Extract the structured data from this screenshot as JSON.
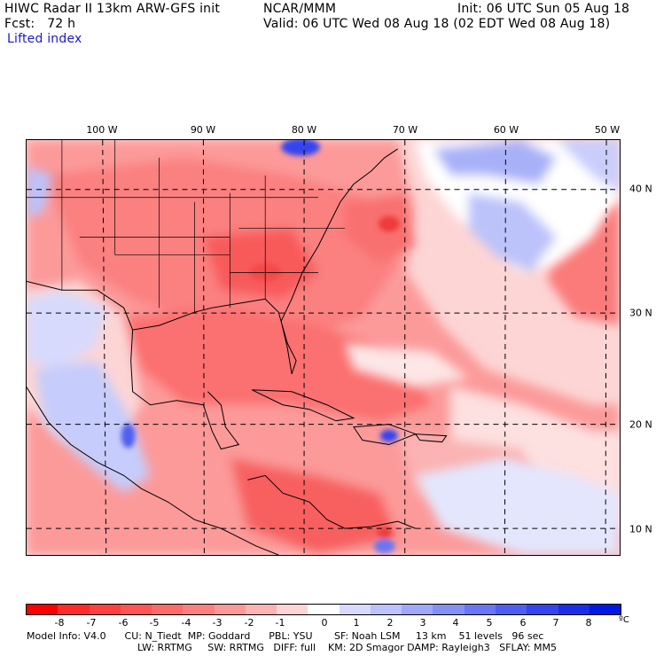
{
  "header": {
    "line1_left": "HIWC Radar II 13km ARW-GFS init",
    "line1_mid": "NCAR/MMM",
    "line1_right": "Init: 06 UTC Sun 05 Aug 18",
    "line2_left": "Fcst:   72 h",
    "line2_right": "Valid: 06 UTC Wed 08 Aug 18 (02 EDT Wed 08 Aug 18)",
    "field": "Lifted index"
  },
  "map": {
    "lon_labels": [
      "100 W",
      "90 W",
      "80 W",
      "70 W",
      "60 W",
      "50 W"
    ],
    "lat_labels": [
      "40 N",
      "30 N",
      "20 N",
      "10 N"
    ]
  },
  "colorbar": {
    "ticks": [
      "-8",
      "-7",
      "-6",
      "-5",
      "-4",
      "-3",
      "-2",
      "-1",
      "0",
      "1",
      "2",
      "3",
      "4",
      "5",
      "6",
      "7",
      "8"
    ],
    "unit": "ºC",
    "colors": [
      "#ff0000",
      "#ff2a2a",
      "#ff4040",
      "#ff5555",
      "#fd6b6b",
      "#fc8080",
      "#fb9999",
      "#fbb3b3",
      "#fdd5d5",
      "#ffffff",
      "#d7dafc",
      "#bcc2fa",
      "#a0a8f8",
      "#8590f5",
      "#6a76f3",
      "#4f5ef0",
      "#3445ee",
      "#1a2de9",
      "#0018e6"
    ]
  },
  "footer": {
    "line1": "Model Info: V4.0      CU: N_Tiedt  MP: Goddard      PBL: YSU       SF: Noah LSM     13 km    51 levels   96 sec",
    "line2": "LW: RRTMG     SW: RRTMG   DIFF: full    KM: 2D Smagor DAMP: Rayleigh3   SFLAY: MM5"
  }
}
